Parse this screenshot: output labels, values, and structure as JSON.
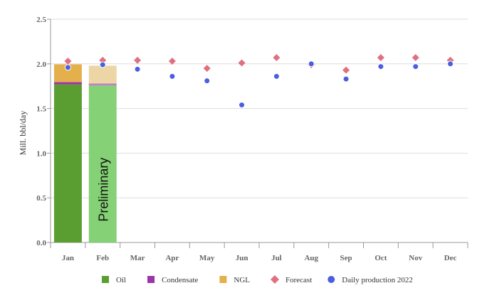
{
  "chart_data": {
    "type": "bar",
    "ylabel": "Mill. bbl/day",
    "ylim": [
      0,
      2.5
    ],
    "yticks": [
      "0.0",
      "0.5",
      "1.0",
      "1.5",
      "2.0",
      "2.5"
    ],
    "categories": [
      "Jan",
      "Feb",
      "Mar",
      "Apr",
      "May",
      "Jun",
      "Jul",
      "Aug",
      "Sep",
      "Oct",
      "Nov",
      "Dec"
    ],
    "grid": true,
    "legend_placement": "bottom",
    "annotation": "Preliminary",
    "stacked_series": [
      {
        "name": "Oil",
        "color": "#5a9e32",
        "values": [
          1.77,
          1.76
        ]
      },
      {
        "name": "Condensate",
        "color": "#9b35a8",
        "values": [
          0.025,
          0.02
        ]
      },
      {
        "name": "NGL",
        "color": "#e3b04b",
        "values": [
          0.2,
          0.2
        ]
      }
    ],
    "preliminary_month": "Feb",
    "point_series": [
      {
        "name": "Forecast",
        "color": "#e07080",
        "marker": "diamond",
        "values": [
          2.03,
          2.04,
          2.04,
          2.03,
          1.95,
          2.01,
          2.07,
          1.99,
          1.93,
          2.07,
          2.07,
          2.04
        ]
      },
      {
        "name": "Daily production 2022",
        "color": "#4a5fe0",
        "marker": "circle",
        "values": [
          1.96,
          1.99,
          1.94,
          1.86,
          1.81,
          1.54,
          1.86,
          2.0,
          1.83,
          1.97,
          1.97,
          2.0
        ]
      }
    ]
  }
}
